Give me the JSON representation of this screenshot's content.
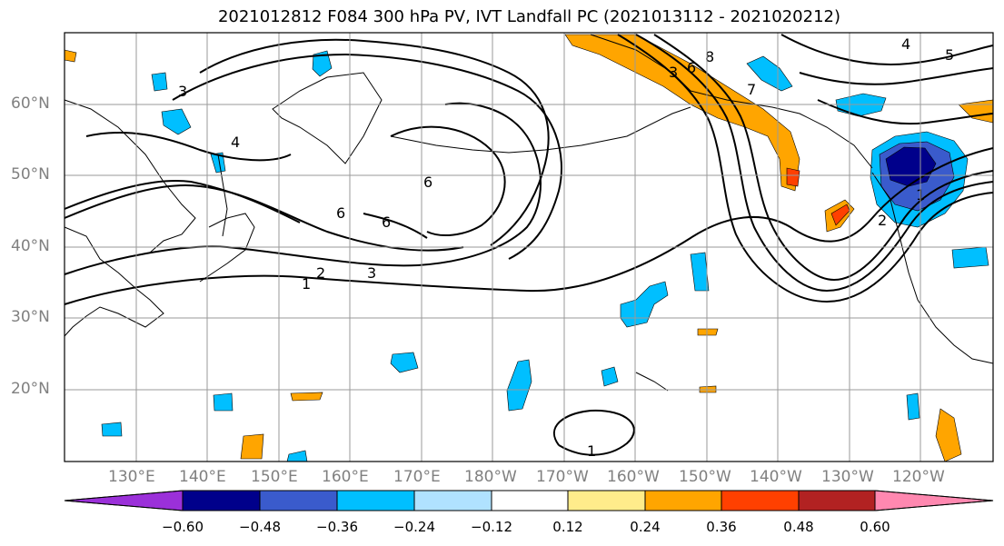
{
  "title": "2021012812 F084 300 hPa PV, IVT Landfall PC (2021013112 - 2021020212)",
  "map": {
    "lat_labels": [
      "60°N",
      "50°N",
      "40°N",
      "30°N",
      "20°N"
    ],
    "lon_labels": [
      "130°E",
      "140°E",
      "150°E",
      "160°E",
      "170°E",
      "180°W",
      "170°W",
      "160°W",
      "150°W",
      "140°W",
      "130°W",
      "120°W"
    ],
    "pv_contour_labels": [
      "1",
      "2",
      "3",
      "4",
      "5",
      "6",
      "7",
      "8"
    ]
  },
  "colorbar": {
    "tick_labels": [
      "−0.60",
      "−0.48",
      "−0.36",
      "−0.24",
      "−0.12",
      "0.12",
      "0.24",
      "0.36",
      "0.48",
      "0.60"
    ],
    "colors": [
      "#9b30d9",
      "#00008b",
      "#3a5bcc",
      "#00bfff",
      "#b0e2ff",
      "#ffffff",
      "#ffec8b",
      "#ffa500",
      "#ff4000",
      "#b22222",
      "#ff88b0"
    ]
  }
}
